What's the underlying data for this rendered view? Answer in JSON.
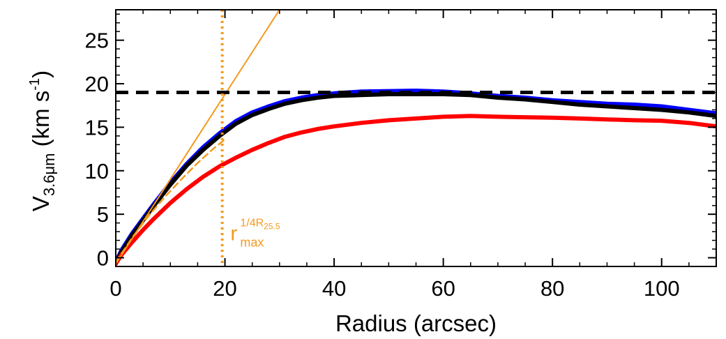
{
  "chart_data": {
    "type": "line",
    "title": "",
    "xlabel": "Radius (arcsec)",
    "ylabel": {
      "main": "V",
      "sub": "3.6μm",
      "unit_open": " (km s",
      "unit_sup": "-1",
      "unit_close": ")"
    },
    "xlim": [
      0,
      110
    ],
    "ylim": [
      -1,
      28.5
    ],
    "x_ticks": [
      0,
      20,
      40,
      60,
      80,
      100
    ],
    "y_ticks": [
      0,
      5,
      10,
      15,
      20,
      25
    ],
    "grid": false,
    "legend": "none",
    "series": [
      {
        "color": "#0000ff",
        "style": "solid-thick",
        "x": [
          0,
          1,
          3,
          5,
          7,
          10,
          13,
          16,
          19,
          22,
          25,
          28,
          31,
          34,
          37,
          40,
          45,
          50,
          55,
          60,
          65,
          70,
          75,
          80,
          85,
          90,
          95,
          100,
          105,
          110
        ],
        "y": [
          -0.5,
          0.8,
          2.8,
          4.5,
          6.2,
          8.6,
          10.8,
          12.7,
          14.3,
          15.7,
          16.7,
          17.4,
          18.0,
          18.4,
          18.7,
          18.9,
          19.1,
          19.15,
          19.2,
          19.1,
          18.9,
          18.6,
          18.4,
          18.1,
          17.9,
          17.7,
          17.6,
          17.4,
          17.0,
          16.6
        ]
      },
      {
        "color": "#000000",
        "style": "solid-thick",
        "x": [
          0,
          1,
          3,
          5,
          7,
          10,
          13,
          16,
          19,
          22,
          25,
          28,
          31,
          34,
          37,
          40,
          45,
          50,
          55,
          60,
          65,
          70,
          75,
          80,
          85,
          90,
          95,
          100,
          105,
          110
        ],
        "y": [
          -0.6,
          0.6,
          2.6,
          4.3,
          6.0,
          8.4,
          10.6,
          12.4,
          14.0,
          15.4,
          16.4,
          17.1,
          17.7,
          18.1,
          18.4,
          18.6,
          18.7,
          18.8,
          18.8,
          18.8,
          18.7,
          18.4,
          18.2,
          17.9,
          17.6,
          17.4,
          17.2,
          17.0,
          16.7,
          16.3
        ]
      },
      {
        "color": "#ff0000",
        "style": "solid-thick",
        "x": [
          0,
          1,
          3,
          5,
          7,
          10,
          13,
          16,
          19,
          22,
          25,
          28,
          31,
          34,
          37,
          40,
          45,
          50,
          55,
          60,
          65,
          70,
          75,
          80,
          85,
          90,
          95,
          100,
          105,
          110
        ],
        "y": [
          -0.7,
          0.3,
          1.8,
          3.2,
          4.5,
          6.3,
          7.9,
          9.3,
          10.5,
          11.5,
          12.4,
          13.2,
          13.9,
          14.4,
          14.8,
          15.1,
          15.5,
          15.8,
          16.0,
          16.2,
          16.3,
          16.2,
          16.15,
          16.1,
          16.0,
          15.9,
          15.8,
          15.75,
          15.5,
          15.1
        ]
      },
      {
        "color": "#f39a1e",
        "style": "dashed",
        "x": [
          0,
          3,
          6,
          9,
          12,
          15,
          18,
          20
        ],
        "y": [
          -0.5,
          2.3,
          4.8,
          7.0,
          9.0,
          10.9,
          12.6,
          13.6
        ]
      },
      {
        "color": "#f39a1e",
        "style": "solid-thin",
        "x": [
          0,
          30
        ],
        "y": [
          -0.7,
          28.5
        ]
      }
    ],
    "hline": {
      "y": 19.0,
      "color": "#000000",
      "style": "dashed"
    },
    "vline": {
      "x": 19.5,
      "color": "#f39a1e",
      "style": "dotted"
    },
    "annotation": {
      "base": "r",
      "sub": "max",
      "sup": "1/4R",
      "sup_sub": "25.5",
      "color": "#f39a1e",
      "x": 21,
      "y": 2
    }
  }
}
